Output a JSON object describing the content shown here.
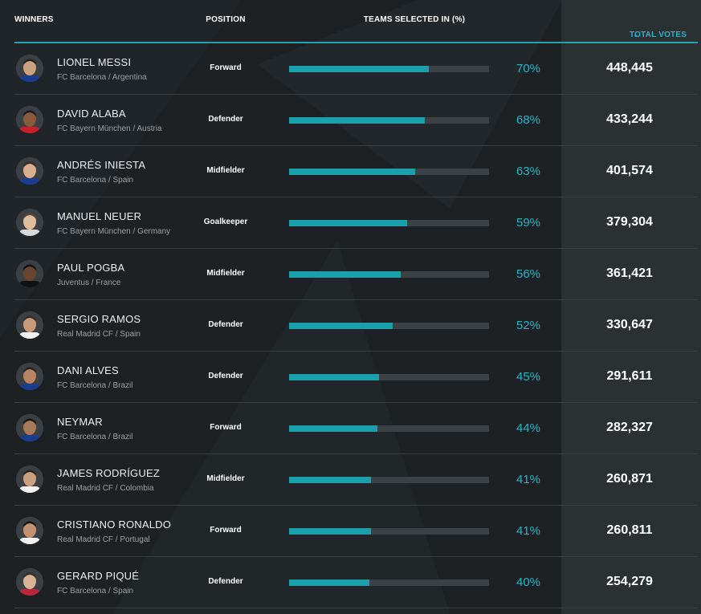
{
  "header": {
    "winners": "WINNERS",
    "position": "POSITION",
    "teams": "TEAMS SELECTED IN (%)",
    "votes": "TOTAL VOTES"
  },
  "colors": {
    "accent": "#2ab4c7",
    "bar": "#1e9fae",
    "track": "#3c4145",
    "background": "#1d2124"
  },
  "rows": [
    {
      "name": "LIONEL MESSI",
      "club": "FC Barcelona / Argentina",
      "position": "Forward",
      "percent": 70,
      "percent_label": "70%",
      "votes": "448,445"
    },
    {
      "name": "DAVID ALABA",
      "club": "FC Bayern München / Austria",
      "position": "Defender",
      "percent": 68,
      "percent_label": "68%",
      "votes": "433,244"
    },
    {
      "name": "ANDRÉS INIESTA",
      "club": "FC Barcelona / Spain",
      "position": "Midfielder",
      "percent": 63,
      "percent_label": "63%",
      "votes": "401,574"
    },
    {
      "name": "MANUEL NEUER",
      "club": "FC Bayern München / Germany",
      "position": "Goalkeeper",
      "percent": 59,
      "percent_label": "59%",
      "votes": "379,304"
    },
    {
      "name": "PAUL POGBA",
      "club": "Juventus / France",
      "position": "Midfielder",
      "percent": 56,
      "percent_label": "56%",
      "votes": "361,421"
    },
    {
      "name": "SERGIO RAMOS",
      "club": "Real Madrid CF / Spain",
      "position": "Defender",
      "percent": 52,
      "percent_label": "52%",
      "votes": "330,647"
    },
    {
      "name": "DANI ALVES",
      "club": "FC Barcelona / Brazil",
      "position": "Defender",
      "percent": 45,
      "percent_label": "45%",
      "votes": "291,611"
    },
    {
      "name": "NEYMAR",
      "club": "FC Barcelona / Brazil",
      "position": "Forward",
      "percent": 44,
      "percent_label": "44%",
      "votes": "282,327"
    },
    {
      "name": "JAMES RODRÍGUEZ",
      "club": "Real Madrid CF / Colombia",
      "position": "Midfielder",
      "percent": 41,
      "percent_label": "41%",
      "votes": "260,871"
    },
    {
      "name": "CRISTIANO RONALDO",
      "club": "Real Madrid CF / Portugal",
      "position": "Forward",
      "percent": 41,
      "percent_label": "41%",
      "votes": "260,811"
    },
    {
      "name": "GERARD PIQUÉ",
      "club": "FC Barcelona / Spain",
      "position": "Defender",
      "percent": 40,
      "percent_label": "40%",
      "votes": "254,279"
    }
  ]
}
